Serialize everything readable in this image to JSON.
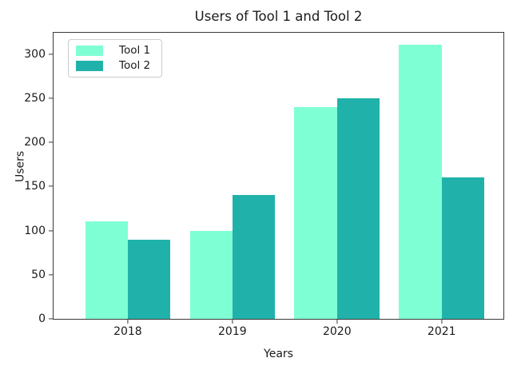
{
  "chart_data": {
    "type": "bar",
    "title": "Users of Tool 1 and Tool 2",
    "xlabel": "Years",
    "ylabel": "Users",
    "categories": [
      "2018",
      "2019",
      "2020",
      "2021"
    ],
    "series": [
      {
        "name": "Tool 1",
        "color": "#7FFFD4",
        "values": [
          110,
          100,
          240,
          310
        ]
      },
      {
        "name": "Tool 2",
        "color": "#20B2AA",
        "values": [
          90,
          140,
          250,
          160
        ]
      }
    ],
    "ylim": [
      0,
      324
    ],
    "yticks": [
      0,
      50,
      100,
      150,
      200,
      250,
      300
    ],
    "legend_position": "upper left",
    "grid": false,
    "background_color": "#ffffff",
    "axis_color": "#3a3a3a"
  }
}
